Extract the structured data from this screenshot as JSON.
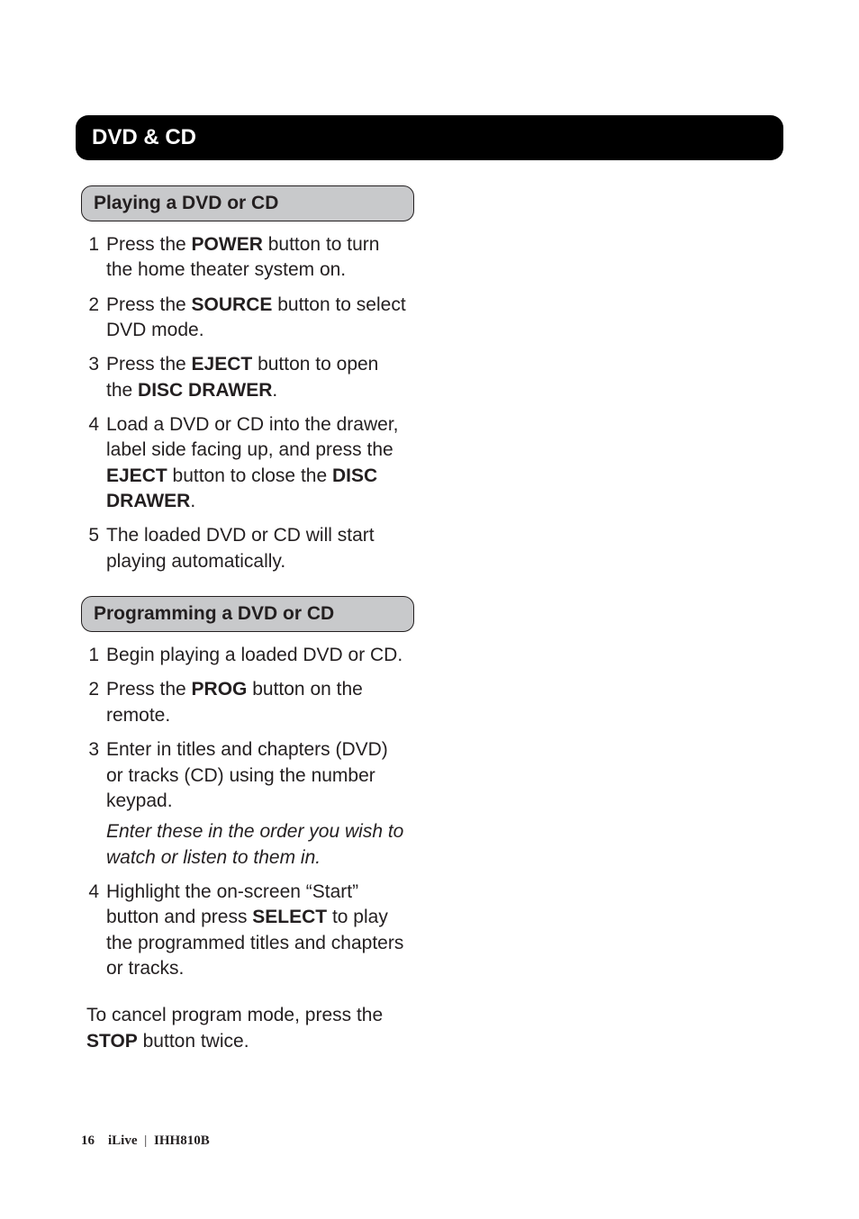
{
  "header": {
    "title": "DVD & CD"
  },
  "sections": [
    {
      "title": "Playing a DVD or CD",
      "steps": [
        {
          "n": "1",
          "runs": [
            {
              "t": "Press the  "
            },
            {
              "t": "POWER",
              "b": true
            },
            {
              "t": " button to turn the home theater system on."
            }
          ]
        },
        {
          "n": "2",
          "runs": [
            {
              "t": "Press the "
            },
            {
              "t": "SOURCE",
              "b": true
            },
            {
              "t": " button to select DVD mode."
            }
          ]
        },
        {
          "n": "3",
          "runs": [
            {
              "t": "Press the "
            },
            {
              "t": "EJECT",
              "b": true
            },
            {
              "t": " button to open the "
            },
            {
              "t": "DISC DRAWER",
              "b": true
            },
            {
              "t": "."
            }
          ]
        },
        {
          "n": "4",
          "runs": [
            {
              "t": "Load a DVD or CD into the drawer, label side facing up, and press the "
            },
            {
              "t": "EJECT",
              "b": true
            },
            {
              "t": " button to close the "
            },
            {
              "t": "DISC DRAWER",
              "b": true
            },
            {
              "t": "."
            }
          ]
        },
        {
          "n": "5",
          "runs": [
            {
              "t": "The loaded DVD or CD will start playing automatically."
            }
          ]
        }
      ]
    },
    {
      "title": "Programming a DVD or CD",
      "steps": [
        {
          "n": "1",
          "runs": [
            {
              "t": "Begin playing a loaded DVD or CD."
            }
          ]
        },
        {
          "n": "2",
          "runs": [
            {
              "t": "Press the "
            },
            {
              "t": "PROG",
              "b": true
            },
            {
              "t": " button on the remote."
            }
          ]
        },
        {
          "n": "3",
          "runs": [
            {
              "t": "Enter in titles and chapters (DVD) or tracks (CD) using the number keypad."
            }
          ],
          "note": "Enter these in the order you wish to watch or listen to them in."
        },
        {
          "n": "4",
          "runs": [
            {
              "t": "Highlight the on-screen “Start” button and press "
            },
            {
              "t": "SELECT",
              "b": true
            },
            {
              "t": " to play the programmed titles and chapters or tracks."
            }
          ]
        }
      ],
      "trailing_runs": [
        {
          "t": "To cancel program mode, press the "
        },
        {
          "t": "STOP",
          "b": true
        },
        {
          "t": " button twice."
        }
      ]
    }
  ],
  "footer": {
    "page": "16",
    "brand": "iLive",
    "model": "IHH810B"
  }
}
